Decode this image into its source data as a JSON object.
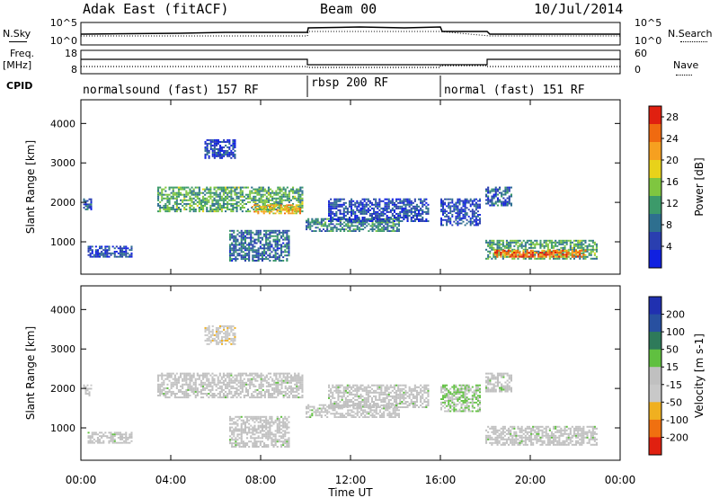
{
  "header": {
    "station": "Adak East (fitACF)",
    "beam": "Beam 00",
    "date": "10/Jul/2014"
  },
  "left_labels": {
    "nsky": "N.Sky",
    "freq": "Freq.",
    "freq_unit": "[MHz]",
    "cpid": "CPID"
  },
  "right_labels": {
    "nsearch": "N.Search",
    "nave": "Nave"
  },
  "noise_panel": {
    "left_ticks": [
      "10^5",
      "10^0"
    ],
    "right_ticks": [
      "10^5",
      "10^0"
    ]
  },
  "freq_panel": {
    "left_ticks": [
      "18",
      "8"
    ],
    "right_ticks": [
      "60",
      "0"
    ]
  },
  "cpid_segments": [
    {
      "label": "normalsound (fast) 157 RF",
      "start": 0,
      "end": 10
    },
    {
      "label": "rbsp 200 RF",
      "start": 10,
      "end": 16
    },
    {
      "label": "normal (fast) 151 RF",
      "start": 16,
      "end": 24
    }
  ],
  "colors": {
    "power_scale": [
      "#1020e0",
      "#2a3fb0",
      "#2e6f8f",
      "#3c9a6a",
      "#7fc640",
      "#e8d21a",
      "#f6a020",
      "#f06a10",
      "#e02010"
    ],
    "velocity_scale": [
      "#2030b0",
      "#2850a0",
      "#2e7a5a",
      "#60c040",
      "#c0c0c0",
      "#c8c8c8",
      "#f0b020",
      "#f07010",
      "#e02010"
    ]
  },
  "chart_data": [
    {
      "type": "heatmap",
      "title": "Power",
      "ylabel": "Slant Range [km]",
      "xlabel": "Time UT",
      "x_ticks": [
        "00:00",
        "04:00",
        "08:00",
        "12:00",
        "16:00",
        "20:00",
        "00:00"
      ],
      "xlim_hours": [
        0,
        24
      ],
      "y_ticks": [
        1000,
        2000,
        3000,
        4000
      ],
      "ylim_km": [
        180,
        4600
      ],
      "colorbar_label": "Power [dB]",
      "colorbar_ticks": [
        4,
        8,
        12,
        16,
        20,
        24,
        28
      ],
      "colorbar_range": [
        0,
        30
      ],
      "echo_regions": [
        {
          "t_start": 0.1,
          "t_end": 0.5,
          "r_start": 1800,
          "r_end": 2100,
          "value": 6
        },
        {
          "t_start": 0.3,
          "t_end": 2.3,
          "r_start": 600,
          "r_end": 900,
          "value": 5
        },
        {
          "t_start": 3.4,
          "t_end": 9.9,
          "r_start": 1750,
          "r_end": 2400,
          "value": 12
        },
        {
          "t_start": 7.6,
          "t_end": 9.8,
          "r_start": 1700,
          "r_end": 1950,
          "value": 20
        },
        {
          "t_start": 6.6,
          "t_end": 9.3,
          "r_start": 500,
          "r_end": 1300,
          "value": 8
        },
        {
          "t_start": 5.5,
          "t_end": 6.9,
          "r_start": 3100,
          "r_end": 3600,
          "value": 4
        },
        {
          "t_start": 10.0,
          "t_end": 14.2,
          "r_start": 1250,
          "r_end": 1600,
          "value": 10
        },
        {
          "t_start": 11.0,
          "t_end": 15.5,
          "r_start": 1500,
          "r_end": 2100,
          "value": 5
        },
        {
          "t_start": 16.0,
          "t_end": 17.8,
          "r_start": 1400,
          "r_end": 2100,
          "value": 5
        },
        {
          "t_start": 18.0,
          "t_end": 19.2,
          "r_start": 1900,
          "r_end": 2400,
          "value": 7
        },
        {
          "t_start": 18.0,
          "t_end": 23.0,
          "r_start": 550,
          "r_end": 1050,
          "value": 12
        },
        {
          "t_start": 18.4,
          "t_end": 22.5,
          "r_start": 600,
          "r_end": 800,
          "value": 24
        }
      ]
    },
    {
      "type": "heatmap",
      "title": "Velocity",
      "ylabel": "Slant Range [km]",
      "xlabel": "Time UT",
      "x_ticks": [
        "00:00",
        "04:00",
        "08:00",
        "12:00",
        "16:00",
        "20:00",
        "00:00"
      ],
      "xlim_hours": [
        0,
        24
      ],
      "y_ticks": [
        1000,
        2000,
        3000,
        4000
      ],
      "ylim_km": [
        180,
        4600
      ],
      "colorbar_label": "Velocity [m s-1]",
      "colorbar_ticks": [
        200,
        100,
        50,
        15,
        -15,
        -50,
        -100,
        -200
      ],
      "colorbar_range": [
        -250,
        250
      ],
      "echo_regions": [
        {
          "t_start": 0.1,
          "t_end": 0.5,
          "r_start": 1800,
          "r_end": 2100,
          "value": 0
        },
        {
          "t_start": 0.3,
          "t_end": 2.3,
          "r_start": 600,
          "r_end": 900,
          "value": 0
        },
        {
          "t_start": 3.4,
          "t_end": 9.9,
          "r_start": 1750,
          "r_end": 2400,
          "value": 0
        },
        {
          "t_start": 6.6,
          "t_end": 9.3,
          "r_start": 500,
          "r_end": 1300,
          "value": 0
        },
        {
          "t_start": 5.5,
          "t_end": 6.9,
          "r_start": 3100,
          "r_end": 3600,
          "value": -60
        },
        {
          "t_start": 10.0,
          "t_end": 14.2,
          "r_start": 1250,
          "r_end": 1600,
          "value": 0
        },
        {
          "t_start": 11.0,
          "t_end": 15.5,
          "r_start": 1500,
          "r_end": 2100,
          "value": 0
        },
        {
          "t_start": 16.0,
          "t_end": 17.8,
          "r_start": 1400,
          "r_end": 2100,
          "value": 30
        },
        {
          "t_start": 18.0,
          "t_end": 19.2,
          "r_start": 1900,
          "r_end": 2400,
          "value": 0
        },
        {
          "t_start": 18.0,
          "t_end": 23.0,
          "r_start": 550,
          "r_end": 1050,
          "value": 0
        }
      ]
    }
  ]
}
